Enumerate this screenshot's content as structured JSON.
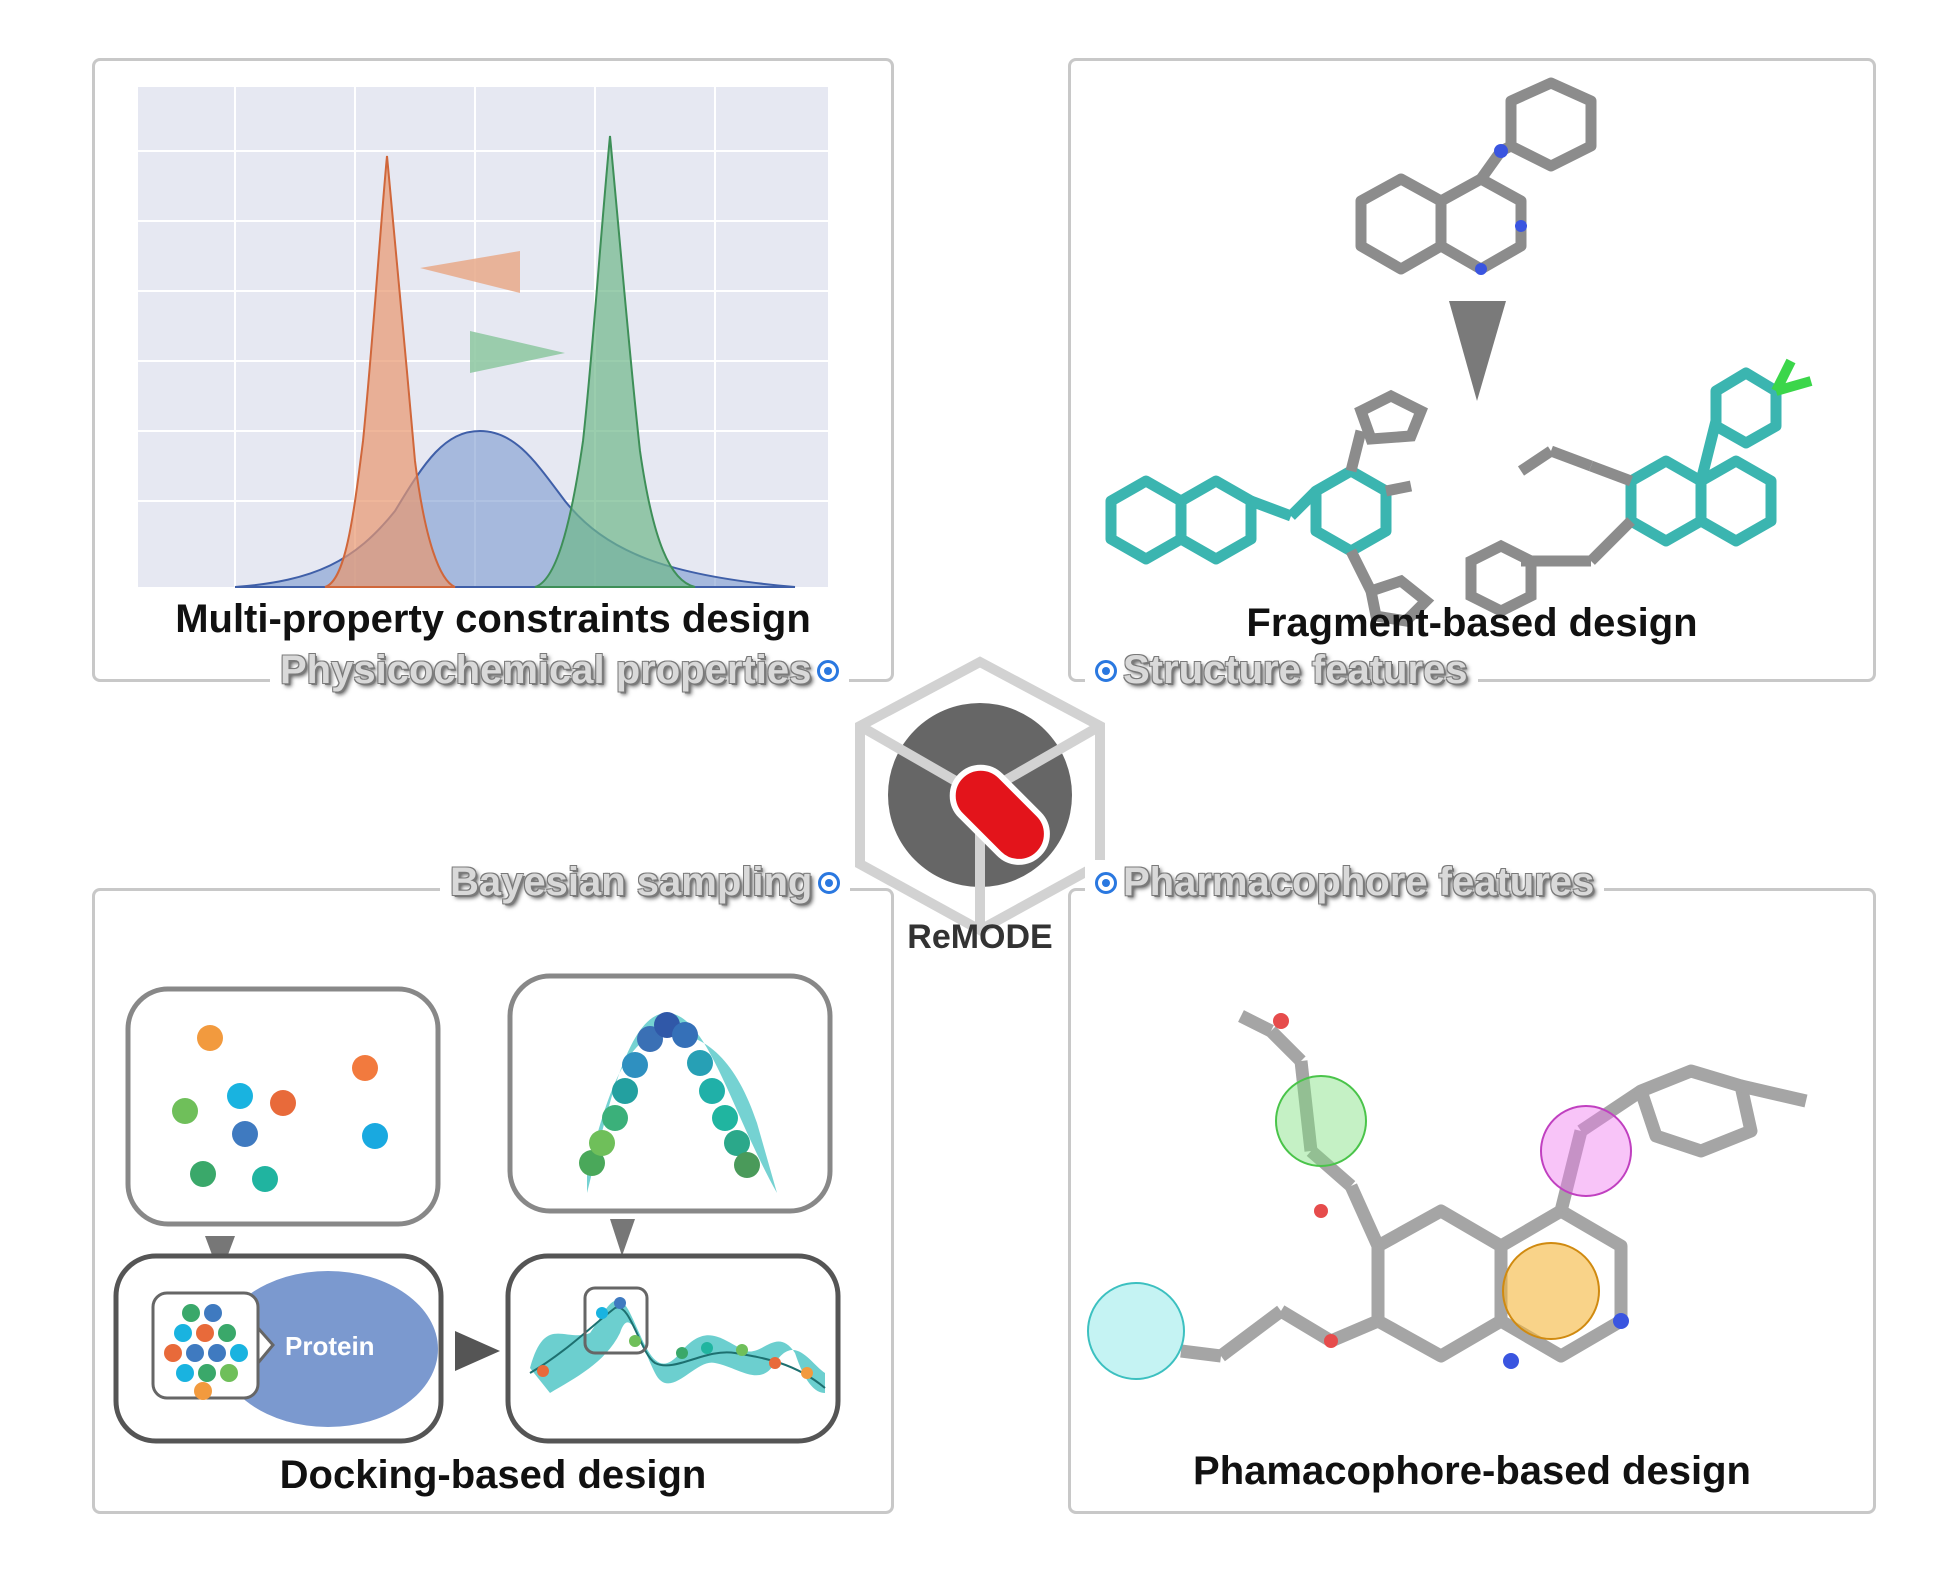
{
  "center": {
    "brand": "ReMODE"
  },
  "panels": {
    "top_left": {
      "title": "Multi-property constraints design",
      "feature": "Physicochemical properties"
    },
    "top_right": {
      "title": "Fragment-based design",
      "feature": "Structure features"
    },
    "bottom_left": {
      "title": "Docking-based design",
      "feature": "Bayesian sampling",
      "protein_label": "Protein"
    },
    "bottom_right": {
      "title": "Phamacophore-based design",
      "feature": "Pharmacophore features"
    }
  },
  "colors": {
    "orange": "#e8976f",
    "blue": "#7b99cf",
    "green": "#6fb88a",
    "teal": "#3bbfbf",
    "logo_red": "#e3141b",
    "logo_gray": "#666666",
    "feature_dot": "#2a78e0"
  },
  "icons": [
    "hexagon-logo",
    "histogram",
    "molecule",
    "pharmacophore-sphere",
    "protein-blob",
    "gaussian-process-curve"
  ]
}
